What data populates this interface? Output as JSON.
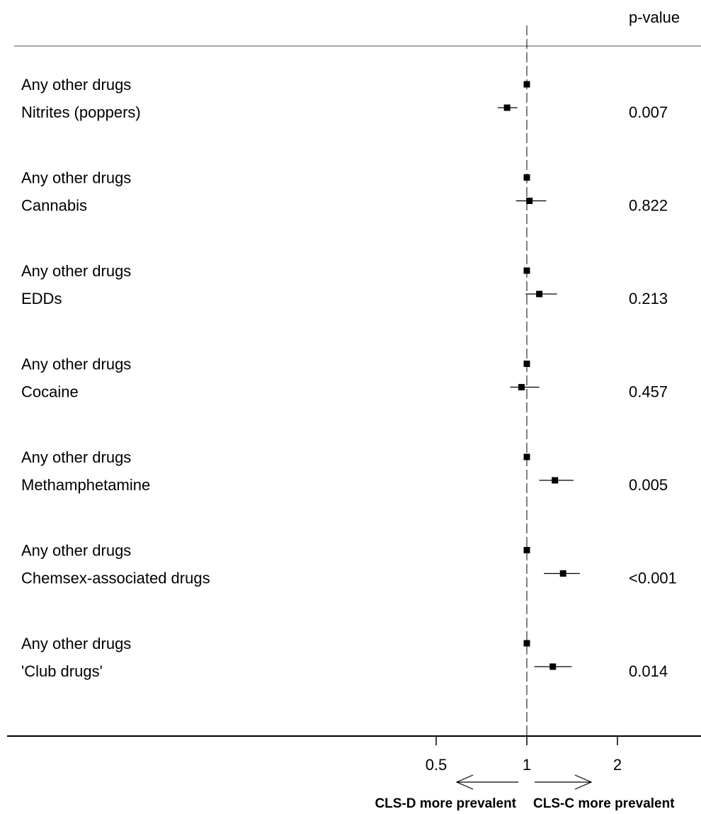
{
  "chart_data": {
    "type": "forest",
    "pvalue_header": "p-value",
    "reference_value": 1,
    "x_scale": "log2",
    "x_ticks": [
      {
        "value": 0.5,
        "label": "0.5"
      },
      {
        "value": 1,
        "label": "1"
      },
      {
        "value": 2,
        "label": "2"
      }
    ],
    "left_direction_label": "CLS-D more prevalent",
    "right_direction_label": "CLS-C more prevalent",
    "groups": [
      {
        "ref_label": "Any other drugs",
        "label": "Nitrites (poppers)",
        "ref_estimate": 1.0,
        "estimate": 0.86,
        "ci": [
          0.8,
          0.93
        ],
        "p_value": "0.007"
      },
      {
        "ref_label": "Any other drugs",
        "label": "Cannabis",
        "ref_estimate": 1.0,
        "estimate": 1.02,
        "ci": [
          0.92,
          1.16
        ],
        "p_value": "0.822"
      },
      {
        "ref_label": "Any other drugs",
        "label": "EDDs",
        "ref_estimate": 1.0,
        "estimate": 1.1,
        "ci": [
          0.99,
          1.26
        ],
        "p_value": "0.213"
      },
      {
        "ref_label": "Any other drugs",
        "label": "Cocaine",
        "ref_estimate": 1.0,
        "estimate": 0.96,
        "ci": [
          0.88,
          1.1
        ],
        "p_value": "0.457"
      },
      {
        "ref_label": "Any other drugs",
        "label": "Methamphetamine",
        "ref_estimate": 1.0,
        "estimate": 1.24,
        "ci": [
          1.1,
          1.43
        ],
        "p_value": "0.005"
      },
      {
        "ref_label": "Any other drugs",
        "label": "Chemsex-associated drugs",
        "ref_estimate": 1.0,
        "estimate": 1.32,
        "ci": [
          1.14,
          1.5
        ],
        "p_value": "<0.001"
      },
      {
        "ref_label": "Any other drugs",
        "label": "'Club drugs'",
        "ref_estimate": 1.0,
        "estimate": 1.22,
        "ci": [
          1.06,
          1.41
        ],
        "p_value": "0.014"
      }
    ]
  }
}
